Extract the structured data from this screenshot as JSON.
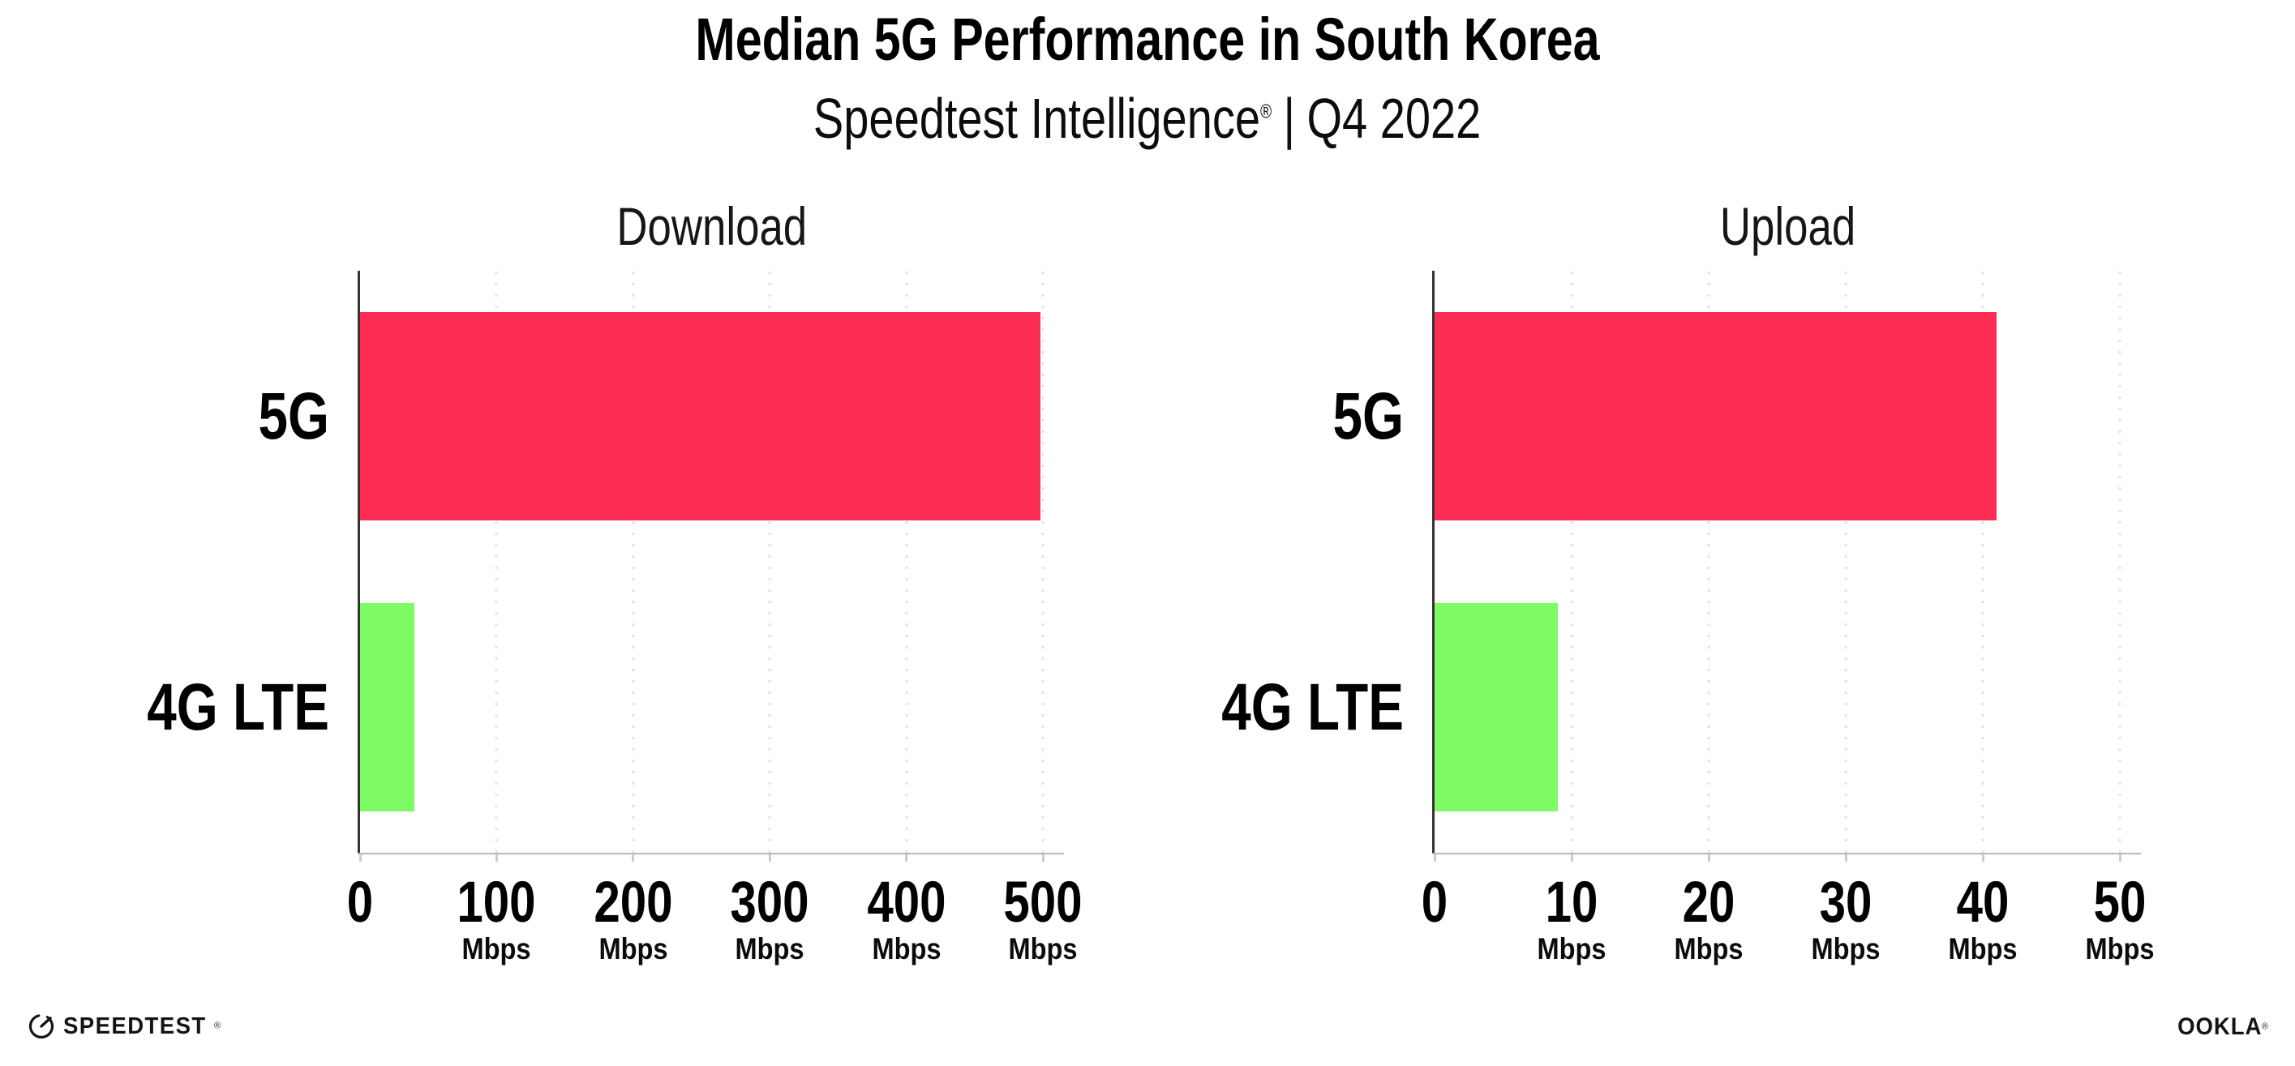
{
  "header": {
    "title": "Median 5G Performance in South Korea",
    "subtitle_brand": "Speedtest Intelligence",
    "subtitle_reg": "®",
    "subtitle_sep": "|",
    "subtitle_period": "Q4 2022"
  },
  "colors": {
    "bar_5g": "#FD2D55",
    "bar_4g_lte": "#7EFB64",
    "gridline": "#E1E1EC",
    "y_axis_line": "#333333",
    "x_baseline": "#B8B8B8",
    "tick_mark": "#CCCCCC",
    "text": "#000000"
  },
  "chart_data": [
    {
      "type": "bar",
      "orientation": "horizontal",
      "title": "Download",
      "categories": [
        "5G",
        "4G LTE"
      ],
      "values": [
        498,
        40
      ],
      "unit": "Mbps",
      "xlim": [
        0,
        500
      ],
      "xticks": [
        0,
        100,
        200,
        300,
        400,
        500
      ],
      "grid": "dotted-vertical",
      "legend": "none",
      "bar_colors": [
        "#FD2D55",
        "#7EFB64"
      ]
    },
    {
      "type": "bar",
      "orientation": "horizontal",
      "title": "Upload",
      "categories": [
        "5G",
        "4G LTE"
      ],
      "values": [
        41,
        9
      ],
      "unit": "Mbps",
      "xlim": [
        0,
        50
      ],
      "xticks": [
        0,
        10,
        20,
        30,
        40,
        50
      ],
      "grid": "dotted-vertical",
      "legend": "none",
      "bar_colors": [
        "#FD2D55",
        "#7EFB64"
      ]
    }
  ],
  "footer": {
    "speedtest_text": "SPEEDTEST",
    "speedtest_reg": "®",
    "ookla_text": "OOKLA",
    "ookla_reg": "®"
  }
}
